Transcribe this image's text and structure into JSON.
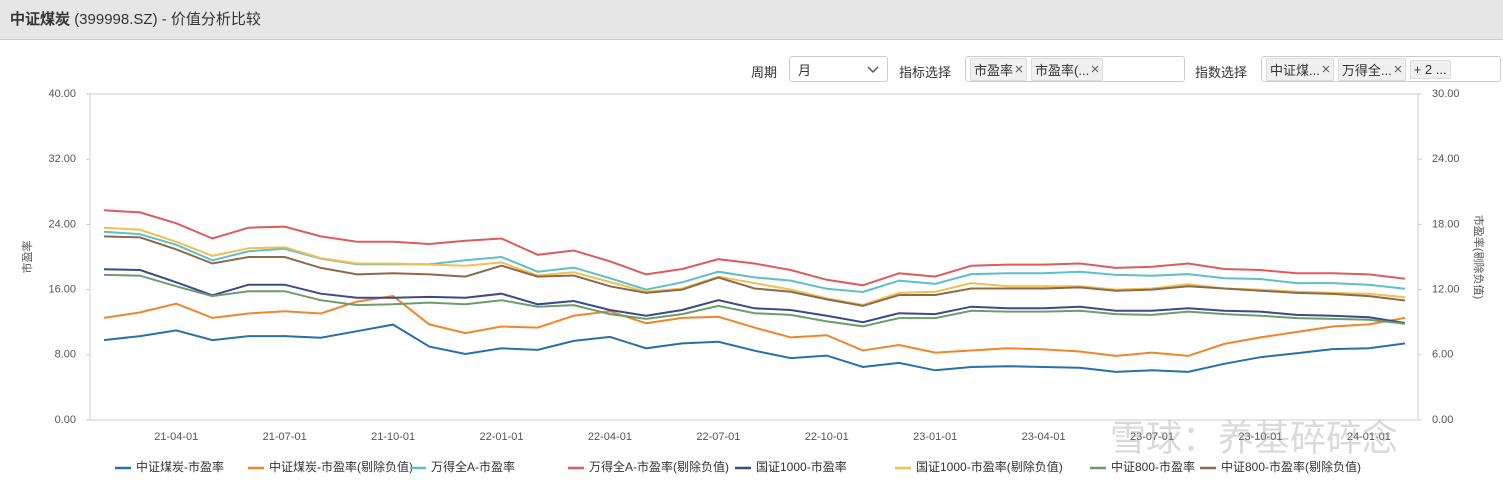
{
  "header": {
    "title": "中证煤炭",
    "code": "(399998.SZ) - 价值分析比较"
  },
  "controls": {
    "period_label": "周期",
    "period_value": "月",
    "indicator_label": "指标选择",
    "indicator_chips": [
      "市盈率",
      "市盈率(..."
    ],
    "index_label": "指数选择",
    "index_chips": [
      "中证煤...",
      "万得全..."
    ],
    "index_more": "+ 2 ..."
  },
  "watermark": "雪球：养基碎碎念",
  "chart_data": {
    "type": "line",
    "y_label": "市盈率",
    "y2_label": "市盈率(剔除负值)",
    "categories": [
      null,
      null,
      "21-04-01",
      null,
      null,
      "21-07-01",
      null,
      null,
      "21-10-01",
      null,
      null,
      "22-01-01",
      null,
      null,
      "22-04-01",
      null,
      null,
      "22-07-01",
      null,
      null,
      "22-10-01",
      null,
      null,
      "23-01-01",
      null,
      null,
      "23-04-01",
      null,
      null,
      "23-07-01",
      null,
      null,
      "23-10-01",
      null,
      null,
      "24-01-01",
      null
    ],
    "ylim": [
      0,
      40
    ],
    "yticks": [
      {
        "value": 0,
        "label": "0.00"
      },
      {
        "value": 8,
        "label": "8.00"
      },
      {
        "value": 16,
        "label": "16.00"
      },
      {
        "value": 24,
        "label": "24.00"
      },
      {
        "value": 32,
        "label": "32.00"
      },
      {
        "value": 40,
        "label": "40.00"
      }
    ],
    "y2lim": [
      0,
      30
    ],
    "y2ticks": [
      {
        "value": 0,
        "label": "0.00"
      },
      {
        "value": 6,
        "label": "6.00"
      },
      {
        "value": 12,
        "label": "12.00"
      },
      {
        "value": 18,
        "label": "18.00"
      },
      {
        "value": 24,
        "label": "24.00"
      },
      {
        "value": 30,
        "label": "30.00"
      }
    ],
    "grid": false,
    "legend": "bottom",
    "series": [
      {
        "name": "中证煤炭-市盈率",
        "color": "#2a6fa8",
        "values": [
          9.8,
          10.3,
          11.0,
          9.8,
          10.3,
          10.3,
          10.1,
          10.9,
          11.7,
          9.0,
          8.1,
          8.8,
          8.6,
          9.7,
          10.2,
          8.8,
          9.4,
          9.6,
          8.5,
          7.6,
          7.9,
          6.5,
          7.0,
          6.1,
          6.5,
          6.6,
          6.5,
          6.4,
          5.9,
          6.1,
          5.9,
          6.9,
          7.7,
          8.2,
          8.7,
          8.8,
          9.4
        ]
      },
      {
        "name": "中证煤炭-市盈率(剔除负值)",
        "color": "#f0862a",
        "axis": "y2",
        "values": [
          9.4,
          9.9,
          10.7,
          9.4,
          9.8,
          10.0,
          9.8,
          10.9,
          11.4,
          8.8,
          8.0,
          8.6,
          8.5,
          9.6,
          10.0,
          8.9,
          9.4,
          9.5,
          8.5,
          7.6,
          7.8,
          6.4,
          6.9,
          6.2,
          6.4,
          6.6,
          6.5,
          6.3,
          5.9,
          6.2,
          5.9,
          7.0,
          7.6,
          8.1,
          8.6,
          8.8,
          9.4
        ]
      },
      {
        "name": "万得全A-市盈率",
        "color": "#5bc0c8",
        "values": [
          23.1,
          22.8,
          21.5,
          19.6,
          20.7,
          21.0,
          19.8,
          19.1,
          19.1,
          19.1,
          19.6,
          20.0,
          18.2,
          18.7,
          17.4,
          16.0,
          16.9,
          18.2,
          17.5,
          17.1,
          16.1,
          15.7,
          17.1,
          16.7,
          17.9,
          18.0,
          18.0,
          18.2,
          17.8,
          17.7,
          17.9,
          17.4,
          17.3,
          16.8,
          16.8,
          16.6,
          16.1
        ]
      },
      {
        "name": "万得全A-市盈率(剔除负值)",
        "color": "#e05a5a",
        "axis": "y2",
        "values": [
          19.3,
          19.1,
          18.1,
          16.7,
          17.7,
          17.8,
          16.9,
          16.4,
          16.4,
          16.2,
          16.5,
          16.7,
          15.2,
          15.6,
          14.6,
          13.4,
          13.9,
          14.8,
          14.4,
          13.8,
          12.9,
          12.4,
          13.5,
          13.2,
          14.2,
          14.3,
          14.3,
          14.4,
          14.0,
          14.1,
          14.4,
          13.9,
          13.8,
          13.5,
          13.5,
          13.4,
          13.0
        ]
      },
      {
        "name": "国证1000-市盈率",
        "color": "#3c4a8a",
        "values": [
          18.5,
          18.4,
          16.9,
          15.3,
          16.6,
          16.6,
          15.5,
          15.0,
          15.0,
          15.1,
          15.0,
          15.5,
          14.2,
          14.6,
          13.5,
          12.8,
          13.5,
          14.7,
          13.7,
          13.5,
          12.8,
          12.0,
          13.1,
          13.0,
          13.9,
          13.7,
          13.7,
          13.9,
          13.4,
          13.4,
          13.7,
          13.4,
          13.3,
          12.9,
          12.8,
          12.6,
          11.9
        ]
      },
      {
        "name": "国证1000-市盈率(剔除负值)",
        "color": "#f0c050",
        "axis": "y2",
        "values": [
          17.7,
          17.5,
          16.4,
          15.1,
          15.8,
          15.9,
          14.9,
          14.4,
          14.4,
          14.3,
          14.2,
          14.5,
          13.3,
          13.6,
          12.7,
          11.8,
          12.1,
          13.2,
          12.6,
          12.0,
          11.2,
          10.6,
          11.7,
          11.8,
          12.6,
          12.3,
          12.3,
          12.3,
          12.0,
          12.1,
          12.5,
          12.1,
          12.0,
          11.8,
          11.7,
          11.6,
          11.3
        ]
      },
      {
        "name": "中证800-市盈率",
        "color": "#6a9e6a",
        "values": [
          17.8,
          17.7,
          16.4,
          15.2,
          15.8,
          15.8,
          14.7,
          14.1,
          14.2,
          14.4,
          14.2,
          14.7,
          13.9,
          14.1,
          13.0,
          12.4,
          13.0,
          14.0,
          13.1,
          12.9,
          12.1,
          11.5,
          12.5,
          12.5,
          13.4,
          13.3,
          13.3,
          13.4,
          13.0,
          12.9,
          13.3,
          13.0,
          12.8,
          12.5,
          12.4,
          12.3,
          11.8
        ]
      },
      {
        "name": "中证800-市盈率(剔除负值)",
        "color": "#8c6a4e",
        "axis": "y2",
        "values": [
          16.9,
          16.8,
          15.7,
          14.4,
          15.0,
          15.0,
          14.0,
          13.4,
          13.5,
          13.4,
          13.2,
          14.2,
          13.2,
          13.3,
          12.3,
          11.7,
          12.0,
          13.1,
          12.1,
          11.8,
          11.1,
          10.5,
          11.5,
          11.5,
          12.1,
          12.1,
          12.1,
          12.2,
          11.9,
          12.0,
          12.3,
          12.1,
          11.9,
          11.7,
          11.6,
          11.4,
          11.0
        ]
      }
    ]
  }
}
